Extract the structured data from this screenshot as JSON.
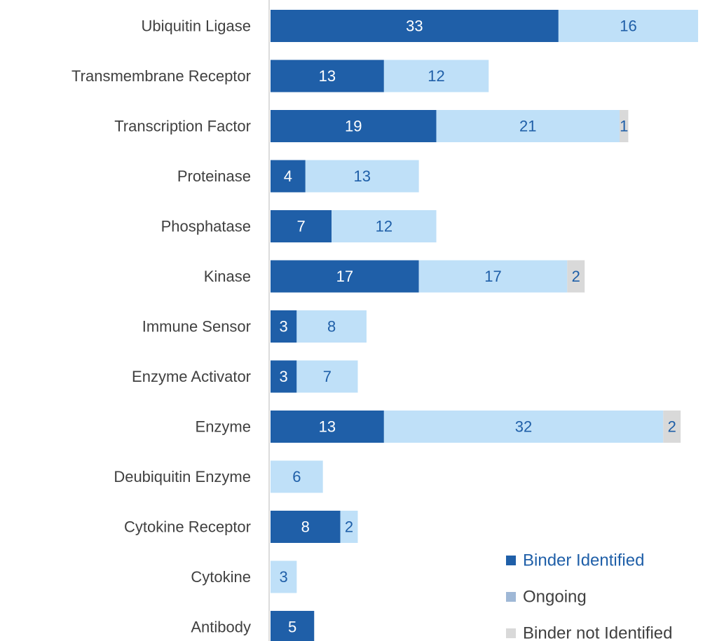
{
  "chart_data": {
    "type": "stacked_bar_horizontal",
    "categories": [
      "Ubiquitin Ligase",
      "Transmembrane Receptor",
      "Transcription Factor",
      "Proteinase",
      "Phosphatase",
      "Kinase",
      "Immune Sensor",
      "Enzyme Activator",
      "Enzyme",
      "Deubiquitin Enzyme",
      "Cytokine Receptor",
      "Cytokine",
      "Antibody"
    ],
    "series": [
      {
        "name": "Binder Identified",
        "color": "#1f5fa8",
        "label_color": "#ffffff",
        "legend_text_color": "#1f5fa8",
        "values": [
          33,
          13,
          19,
          4,
          7,
          17,
          3,
          3,
          13,
          null,
          8,
          null,
          5
        ]
      },
      {
        "name": "Ongoing",
        "color": "#bfe0f8",
        "label_color": "#1f5fa8",
        "legend_text_color": "#404040",
        "values": [
          16,
          12,
          21,
          13,
          12,
          17,
          8,
          7,
          32,
          6,
          2,
          3,
          null
        ]
      },
      {
        "name": "Binder not Identified",
        "color": "#d9d9d9",
        "label_color": "#1f5fa8",
        "legend_text_color": "#404040",
        "values": [
          null,
          null,
          1,
          null,
          null,
          2,
          null,
          null,
          2,
          null,
          null,
          null,
          null
        ]
      }
    ],
    "legend": "bottom-right"
  }
}
